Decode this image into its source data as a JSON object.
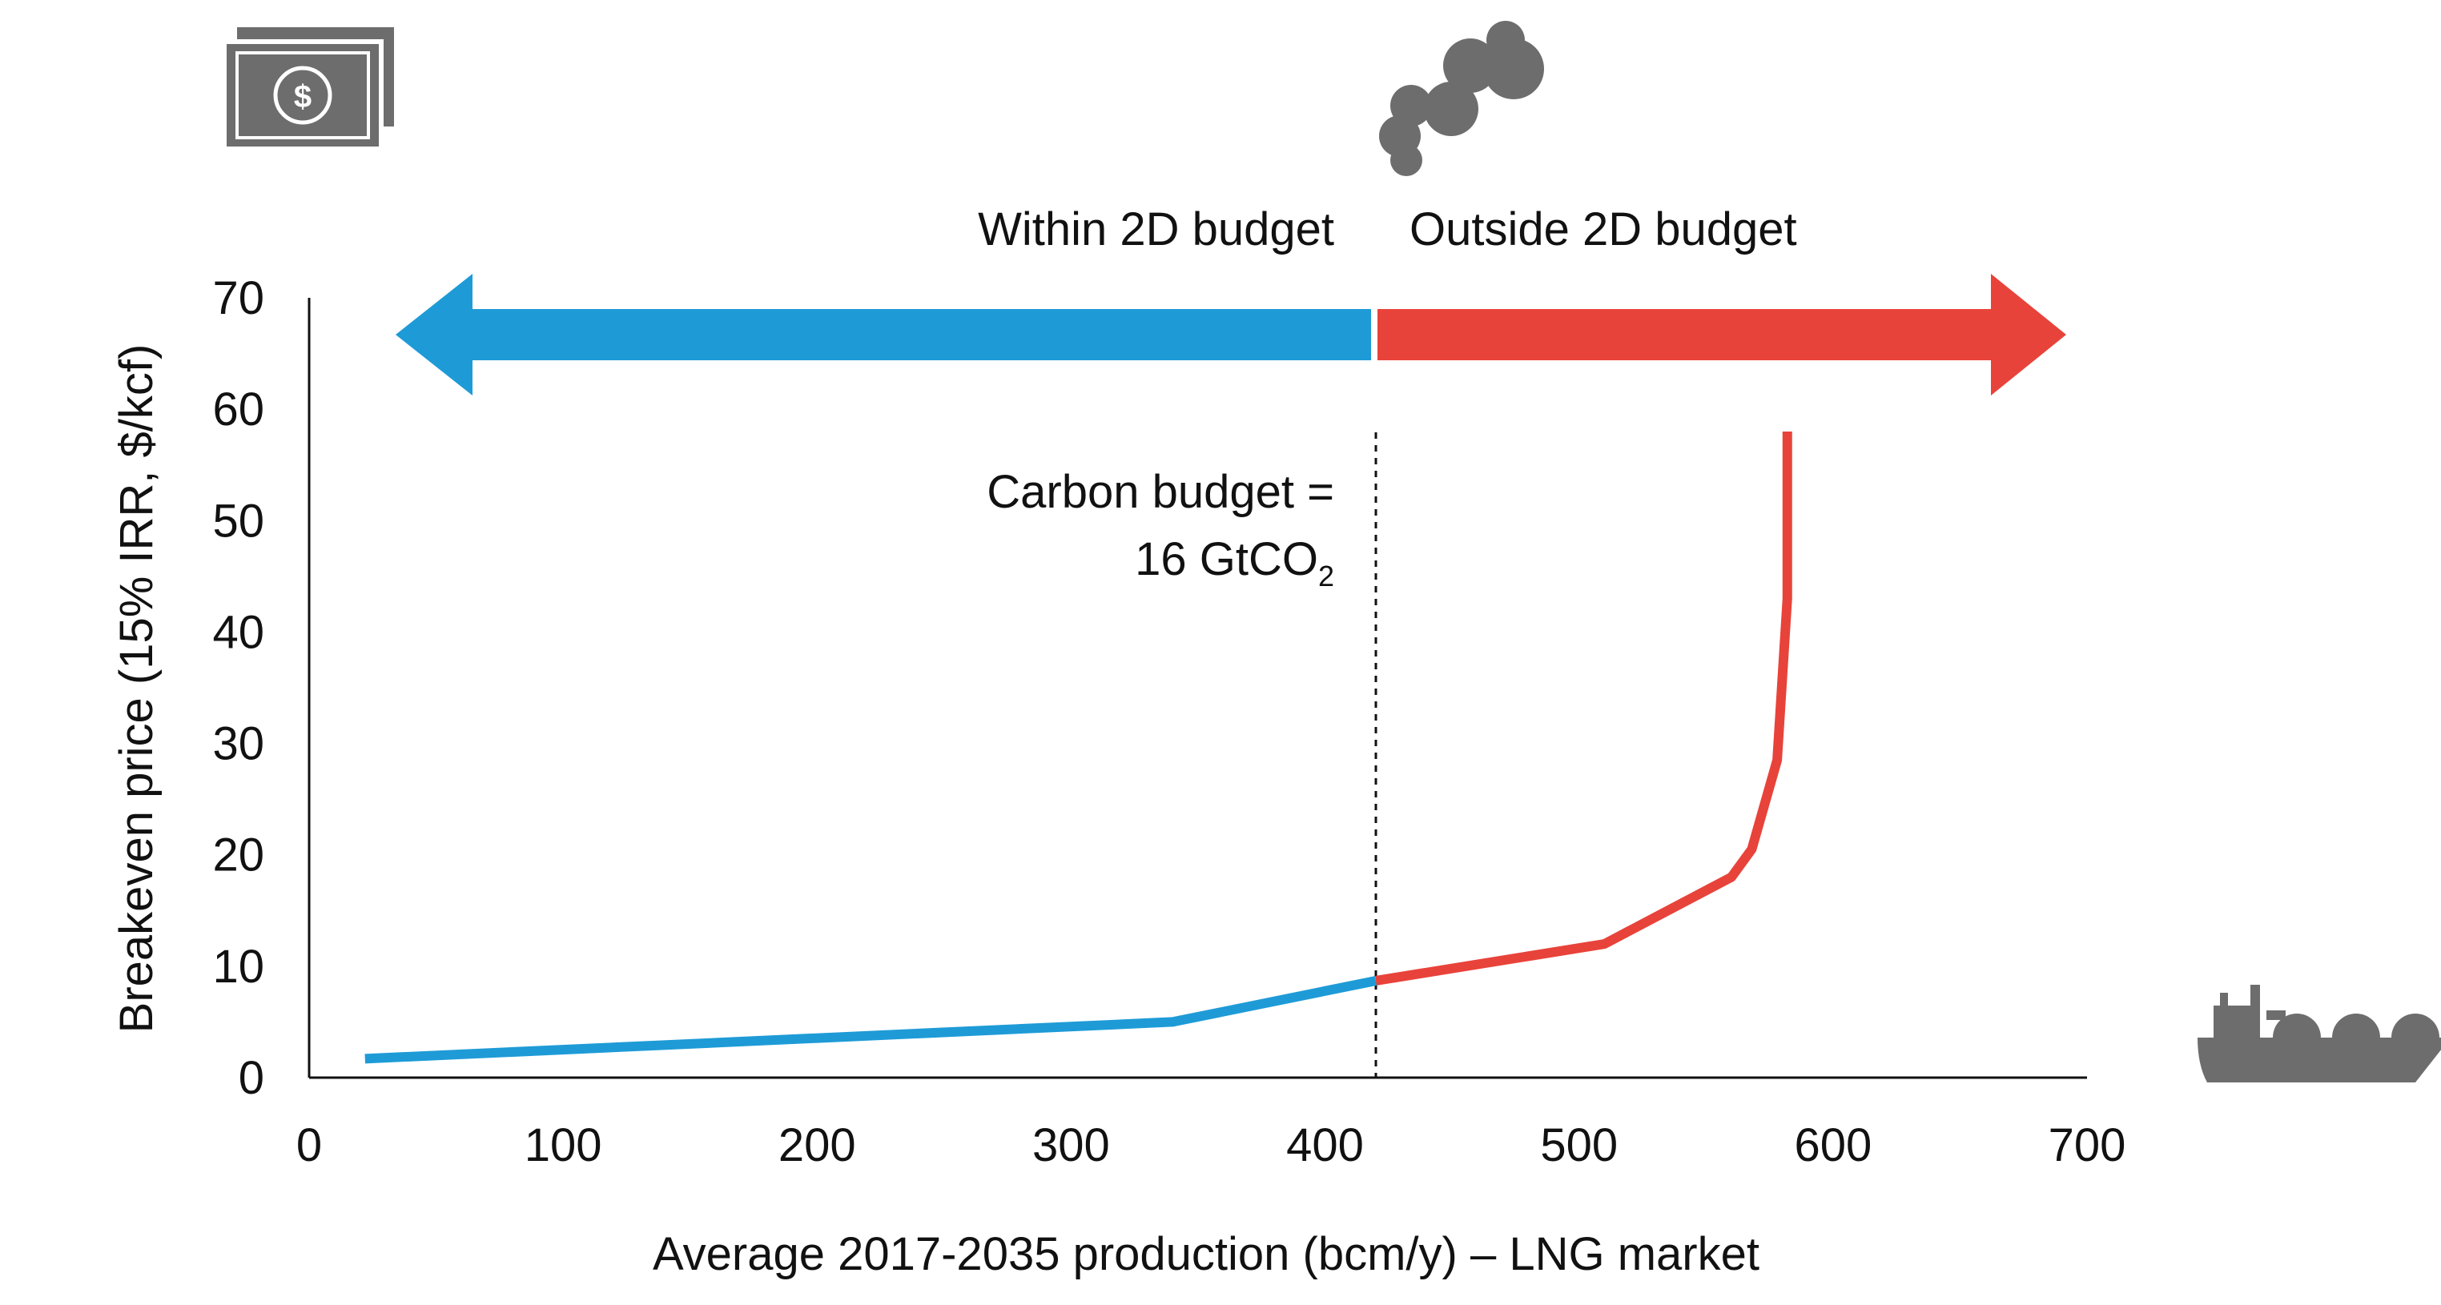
{
  "chart_data": {
    "type": "line",
    "xlabel": "Average 2017-2035 production (bcm/y) – LNG market",
    "ylabel": "Breakeven price (15% IRR, $/kcf)",
    "xlim": [
      0,
      700
    ],
    "ylim": [
      0,
      70
    ],
    "x_ticks": [
      "0",
      "100",
      "200",
      "300",
      "400",
      "500",
      "600",
      "700"
    ],
    "y_ticks": [
      "0",
      "10",
      "20",
      "30",
      "40",
      "50",
      "60",
      "70"
    ],
    "grid": false,
    "series": [
      {
        "color": "#1e9bd7",
        "points": [
          [
            22,
            1.7
          ],
          [
            340,
            5
          ],
          [
            420,
            8.7
          ]
        ]
      },
      {
        "color": "#e8433a",
        "points": [
          [
            420,
            8.7
          ],
          [
            510,
            12
          ],
          [
            560,
            18
          ],
          [
            568,
            20.5
          ],
          [
            578,
            28.5
          ],
          [
            582,
            43
          ],
          [
            582,
            58
          ]
        ]
      }
    ],
    "threshold": {
      "x": 420,
      "label_line1": "Carbon budget =",
      "label_line2": "16 GtCO",
      "label_subscript": "2"
    },
    "left_arrow_label": "Within 2D budget",
    "right_arrow_label": "Outside 2D budget",
    "left_arrow_color": "#1e9bd7",
    "right_arrow_color": "#e8433a",
    "icons": [
      "money-icon",
      "smoke-icon",
      "lng-ship-icon"
    ],
    "icon_color": "#6d6d6d"
  }
}
